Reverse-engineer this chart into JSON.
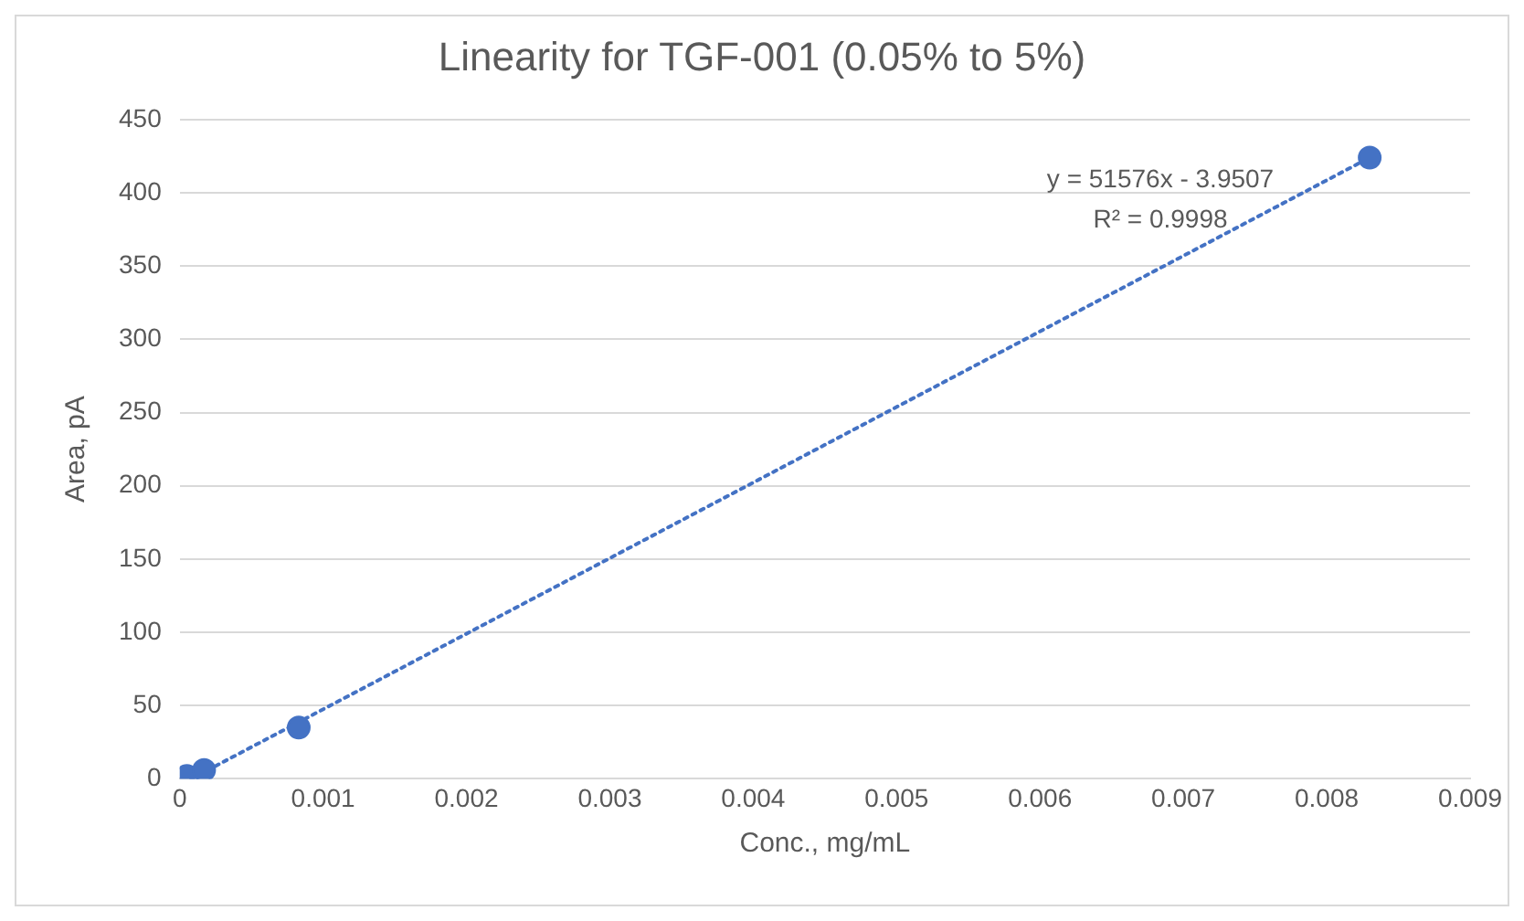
{
  "chart_data": {
    "type": "scatter",
    "title": "Linearity for TGF-001 (0.05% to 5%)",
    "xlabel": "Conc., mg/mL",
    "ylabel": "Area, pA",
    "series": [
      {
        "color": "#4472c4",
        "marker": "circle",
        "x": [
          5e-05,
          0.00017,
          0.00083,
          0.0083
        ],
        "values": [
          2,
          6,
          35,
          424
        ]
      },
      {
        "type": "line",
        "color": "#4472c4",
        "line_style": "dotted",
        "x": [
          8e-05,
          0.0083
        ],
        "values": [
          0,
          424
        ]
      }
    ],
    "annotations": [
      "y = 51576x - 3.9507",
      "R² = 0.9998"
    ],
    "xlim": [
      0,
      0.009
    ],
    "xticks": [
      0,
      0.001,
      0.002,
      0.003,
      0.004,
      0.005,
      0.006,
      0.007,
      0.008,
      0.009
    ],
    "ylim": [
      0,
      450
    ],
    "yticks": [
      0,
      50,
      100,
      150,
      200,
      250,
      300,
      350,
      400,
      450
    ],
    "grid": "y",
    "legend": false
  }
}
